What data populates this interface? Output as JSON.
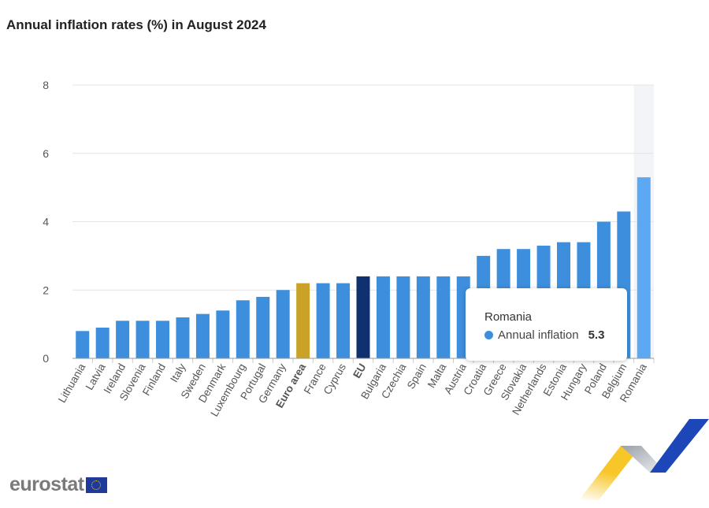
{
  "chart_data": {
    "type": "bar",
    "title": "Annual inflation rates (%) in August 2024",
    "categories": [
      "Lithuania",
      "Latvia",
      "Ireland",
      "Slovenia",
      "Finland",
      "Italy",
      "Sweden",
      "Denmark",
      "Luxembourg",
      "Portugal",
      "Germany",
      "Euro area",
      "France",
      "Cyprus",
      "EU",
      "Bulgaria",
      "Czechia",
      "Spain",
      "Malta",
      "Austria",
      "Croatia",
      "Greece",
      "Slovakia",
      "Netherlands",
      "Estonia",
      "Hungary",
      "Poland",
      "Belgium",
      "Romania"
    ],
    "series": [
      {
        "name": "Annual inflation",
        "values": [
          0.8,
          0.9,
          1.1,
          1.1,
          1.1,
          1.2,
          1.3,
          1.4,
          1.7,
          1.8,
          2.0,
          2.2,
          2.2,
          2.2,
          2.4,
          2.4,
          2.4,
          2.4,
          2.4,
          2.4,
          3.0,
          3.2,
          3.2,
          3.3,
          3.4,
          3.4,
          4.0,
          4.3,
          5.3
        ]
      }
    ],
    "ylim": [
      0,
      8
    ],
    "yticks": [
      0,
      2,
      4,
      6,
      8
    ],
    "grid": true,
    "bold_categories": [
      "Euro area",
      "EU"
    ],
    "highlighted": "Romania",
    "colors": {
      "default": "#3d8fdd",
      "euro_area": "#c9a227",
      "eu": "#10306f",
      "hover": "#5ca8f2",
      "hover_band": "#f2f4f8"
    }
  },
  "tooltip": {
    "name": "Romania",
    "series": "Annual inflation",
    "value": "5.3"
  },
  "logo": {
    "text": "eurostat"
  }
}
